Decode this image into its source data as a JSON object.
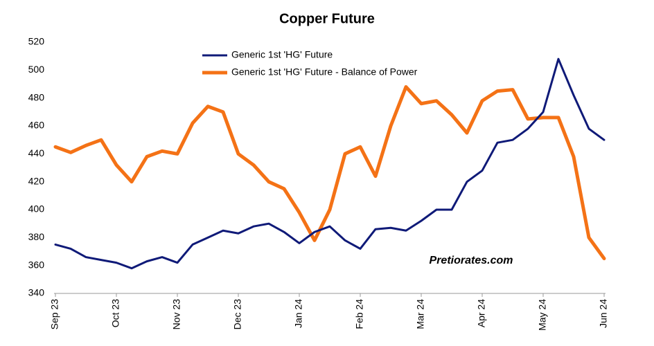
{
  "chart_data": {
    "type": "line",
    "title": "Copper Future",
    "categories": [
      "Sep 23",
      null,
      null,
      null,
      "Oct 23",
      null,
      null,
      null,
      "Nov 23",
      null,
      null,
      null,
      "Dec 23",
      null,
      null,
      null,
      "Jan 24",
      null,
      null,
      null,
      "Feb 24",
      null,
      null,
      null,
      "Mar 24",
      null,
      null,
      null,
      "Apr 24",
      null,
      null,
      null,
      "May 24",
      null,
      null,
      null,
      "Jun 24"
    ],
    "series": [
      {
        "name": "Generic 1st 'HG' Future",
        "color": "#0f1a78",
        "values": [
          375,
          372,
          366,
          364,
          362,
          358,
          363,
          366,
          362,
          375,
          380,
          385,
          383,
          388,
          390,
          384,
          376,
          384,
          388,
          378,
          372,
          386,
          387,
          385,
          392,
          400,
          400,
          420,
          428,
          448,
          450,
          458,
          470,
          508,
          482,
          458,
          450
        ]
      },
      {
        "name": "Generic 1st 'HG' Future - Balance of Power",
        "color": "#f47216",
        "values": [
          445,
          441,
          446,
          450,
          432,
          420,
          438,
          442,
          440,
          462,
          474,
          470,
          440,
          432,
          420,
          415,
          398,
          378,
          400,
          440,
          445,
          424,
          460,
          488,
          476,
          478,
          468,
          455,
          478,
          485,
          486,
          465,
          466,
          466,
          438,
          380,
          365
        ]
      }
    ],
    "ylim": [
      340,
      520
    ],
    "yticks": [
      340,
      360,
      380,
      400,
      420,
      440,
      460,
      480,
      500,
      520
    ],
    "grid": false,
    "legend": "top",
    "annotation": "Pretiorates.com"
  }
}
